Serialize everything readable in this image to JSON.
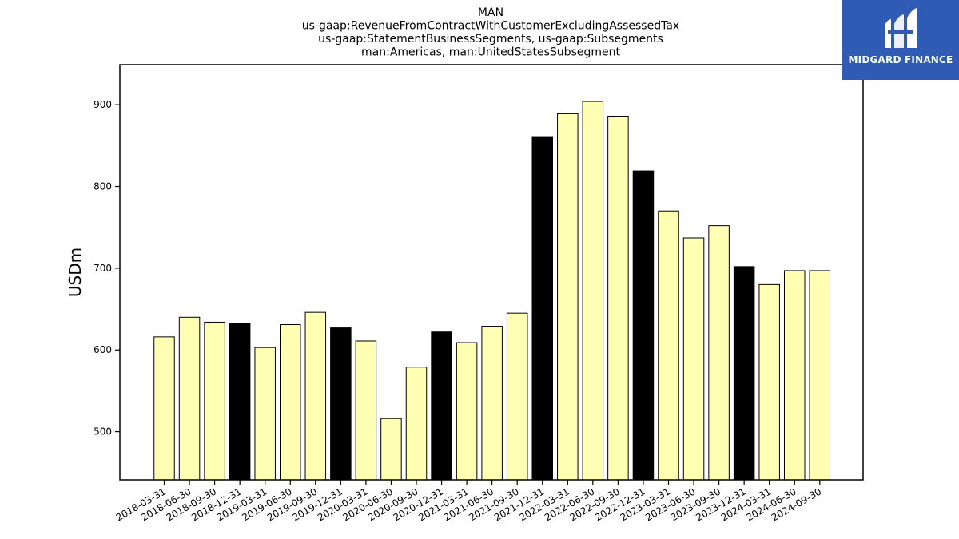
{
  "chart_data": {
    "type": "bar",
    "title_lines": [
      "MAN",
      "us-gaap:RevenueFromContractWithCustomerExcludingAssessedTax",
      "us-gaap:StatementBusinessSegments, us-gaap:Subsegments",
      "man:Americas, man:UnitedStatesSubsegment"
    ],
    "xlabel": "",
    "ylabel": "USDm",
    "ylim": [
      441,
      949
    ],
    "yticks": [
      500,
      600,
      700,
      800,
      900
    ],
    "categories": [
      "2018-03-31",
      "2018-06-30",
      "2018-09-30",
      "2018-12-31",
      "2019-03-31",
      "2019-06-30",
      "2019-09-30",
      "2019-12-31",
      "2020-03-31",
      "2020-06-30",
      "2020-09-30",
      "2020-12-31",
      "2021-03-31",
      "2021-06-30",
      "2021-09-30",
      "2021-12-31",
      "2022-03-31",
      "2022-06-30",
      "2022-09-30",
      "2022-12-31",
      "2023-03-31",
      "2023-06-30",
      "2023-09-30",
      "2023-12-31",
      "2024-03-31",
      "2024-06-30",
      "2024-09-30"
    ],
    "values": [
      616,
      640,
      634,
      632,
      603,
      631,
      646,
      627,
      611,
      516,
      579,
      622,
      609,
      629,
      645,
      861,
      889,
      904,
      886,
      819,
      770,
      737,
      752,
      702,
      680,
      697,
      697
    ],
    "colors": {
      "quarter": "#ffffb3",
      "year_end": "#000000",
      "edge": "#000000"
    },
    "grid": false,
    "legend": "none"
  },
  "logo": {
    "text": "MIDGARD FINANCE",
    "background": "#2f5bb5"
  }
}
